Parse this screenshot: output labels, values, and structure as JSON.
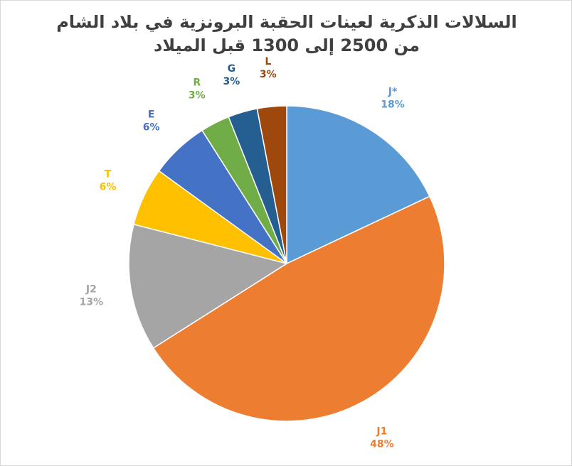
{
  "chart_data": {
    "type": "pie",
    "title_lines": [
      "السلالات الذكرية لعينات الحقبة البرونزية في بلاد الشام",
      "من 2500 إلى 1300 قبل الميلاد"
    ],
    "start_angle_deg": 0,
    "direction": "clockwise",
    "legend": "none",
    "slices": [
      {
        "name": "J*",
        "label": "18%",
        "value": 18,
        "color": "#5B9BD5"
      },
      {
        "name": "J1",
        "label": "48%",
        "value": 48,
        "color": "#ED7D31"
      },
      {
        "name": "J2",
        "label": "13%",
        "value": 13,
        "color": "#A5A5A5"
      },
      {
        "name": "T",
        "label": "6%",
        "value": 6,
        "color": "#FFC000"
      },
      {
        "name": "E",
        "label": "6%",
        "value": 6,
        "color": "#4472C4"
      },
      {
        "name": "R",
        "label": "3%",
        "value": 3,
        "color": "#70AD47"
      },
      {
        "name": "G",
        "label": "3%",
        "value": 3,
        "color": "#255E91"
      },
      {
        "name": "L",
        "label": "3%",
        "value": 3,
        "color": "#9E480E"
      }
    ]
  }
}
